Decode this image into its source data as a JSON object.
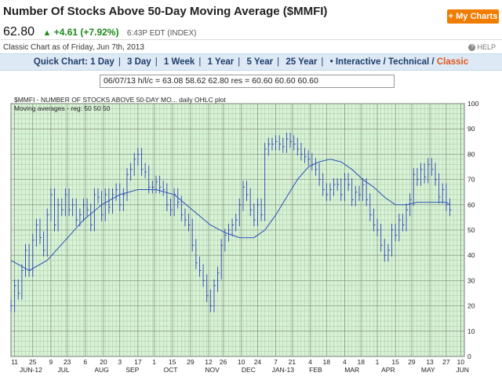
{
  "header": {
    "title": "Number Of Stocks Above 50-Day Moving Average ($MMFI)",
    "my_charts_label": "+ My Charts",
    "price": "62.80",
    "change": "+4.61 (+7.92%)",
    "time": "6:43P EDT (INDEX)",
    "asof": "Classic Chart as of Friday, Jun 7th, 2013",
    "help": "HELP"
  },
  "quickchart": {
    "label": "Quick Chart:",
    "items": [
      "1 Day",
      "3 Day",
      "1 Week",
      "1 Year",
      "5 Year",
      "25 Year"
    ],
    "interactive": "Interactive",
    "technical": "Technical",
    "classic": "Classic",
    "slash": "/"
  },
  "infobox": "06/07/13 h/l/c = 63.08 58.62 62.80 res = 60.60 60.60 60.60",
  "chart_data": {
    "type": "ohlc",
    "title": "$MMFI - NUMBER OF STOCKS ABOVE 50-DAY MO... daily OHLC plot",
    "subtitle": "Moving averages - reg: 50 50 50",
    "ylim": [
      0,
      100
    ],
    "yticks": [
      0,
      10,
      20,
      30,
      40,
      50,
      60,
      70,
      80,
      90,
      100
    ],
    "xlim": [
      0,
      250
    ],
    "xticks": [
      {
        "x": 2,
        "label": "11"
      },
      {
        "x": 12,
        "label": "25"
      },
      {
        "x": 22,
        "label": "9"
      },
      {
        "x": 31,
        "label": "23"
      },
      {
        "x": 41,
        "label": "6"
      },
      {
        "x": 51,
        "label": "20"
      },
      {
        "x": 60,
        "label": "3"
      },
      {
        "x": 70,
        "label": "17"
      },
      {
        "x": 79,
        "label": "1"
      },
      {
        "x": 89,
        "label": "15"
      },
      {
        "x": 99,
        "label": "29"
      },
      {
        "x": 109,
        "label": "12"
      },
      {
        "x": 117,
        "label": "26"
      },
      {
        "x": 127,
        "label": "10"
      },
      {
        "x": 136,
        "label": "24"
      },
      {
        "x": 146,
        "label": "7"
      },
      {
        "x": 155,
        "label": "21"
      },
      {
        "x": 165,
        "label": "4"
      },
      {
        "x": 174,
        "label": "18"
      },
      {
        "x": 184,
        "label": "4"
      },
      {
        "x": 193,
        "label": "18"
      },
      {
        "x": 202,
        "label": "1"
      },
      {
        "x": 212,
        "label": "15"
      },
      {
        "x": 221,
        "label": "29"
      },
      {
        "x": 231,
        "label": "13"
      },
      {
        "x": 240,
        "label": "27"
      },
      {
        "x": 248,
        "label": "10"
      }
    ],
    "month_labels": [
      {
        "x": 11,
        "label": "JUN-12"
      },
      {
        "x": 29,
        "label": "JUL"
      },
      {
        "x": 50,
        "label": "AUG"
      },
      {
        "x": 67,
        "label": "SEP"
      },
      {
        "x": 88,
        "label": "OCT"
      },
      {
        "x": 111,
        "label": "NOV"
      },
      {
        "x": 131,
        "label": "DEC"
      },
      {
        "x": 150,
        "label": "JAN-13"
      },
      {
        "x": 168,
        "label": "FEB"
      },
      {
        "x": 188,
        "label": "MAR"
      },
      {
        "x": 208,
        "label": "APR"
      },
      {
        "x": 230,
        "label": "MAY"
      },
      {
        "x": 249,
        "label": "JUN"
      }
    ],
    "series_close": [
      [
        0,
        20
      ],
      [
        2,
        28
      ],
      [
        4,
        25
      ],
      [
        6,
        34
      ],
      [
        8,
        42
      ],
      [
        10,
        34
      ],
      [
        12,
        46
      ],
      [
        14,
        52
      ],
      [
        16,
        47
      ],
      [
        18,
        42
      ],
      [
        20,
        56
      ],
      [
        22,
        64
      ],
      [
        24,
        52
      ],
      [
        26,
        60
      ],
      [
        28,
        58
      ],
      [
        30,
        64
      ],
      [
        32,
        58
      ],
      [
        34,
        60
      ],
      [
        36,
        54
      ],
      [
        38,
        56
      ],
      [
        40,
        60
      ],
      [
        42,
        58
      ],
      [
        44,
        52
      ],
      [
        46,
        64
      ],
      [
        48,
        63
      ],
      [
        50,
        56
      ],
      [
        52,
        64
      ],
      [
        54,
        59
      ],
      [
        56,
        64
      ],
      [
        58,
        66
      ],
      [
        60,
        60
      ],
      [
        62,
        64
      ],
      [
        64,
        72
      ],
      [
        66,
        74
      ],
      [
        68,
        78
      ],
      [
        70,
        80
      ],
      [
        72,
        74
      ],
      [
        74,
        73
      ],
      [
        76,
        67
      ],
      [
        78,
        67
      ],
      [
        80,
        69
      ],
      [
        82,
        67
      ],
      [
        84,
        66
      ],
      [
        86,
        60
      ],
      [
        88,
        58
      ],
      [
        90,
        64
      ],
      [
        92,
        61
      ],
      [
        94,
        56
      ],
      [
        96,
        54
      ],
      [
        98,
        52
      ],
      [
        100,
        44
      ],
      [
        102,
        37
      ],
      [
        104,
        34
      ],
      [
        106,
        30
      ],
      [
        108,
        24
      ],
      [
        110,
        20
      ],
      [
        112,
        28
      ],
      [
        114,
        33
      ],
      [
        116,
        44
      ],
      [
        118,
        48
      ],
      [
        120,
        50
      ],
      [
        122,
        52
      ],
      [
        124,
        54
      ],
      [
        126,
        60
      ],
      [
        128,
        67
      ],
      [
        130,
        64
      ],
      [
        132,
        58
      ],
      [
        134,
        54
      ],
      [
        136,
        60
      ],
      [
        138,
        56
      ],
      [
        140,
        82
      ],
      [
        142,
        84
      ],
      [
        144,
        84
      ],
      [
        146,
        85
      ],
      [
        148,
        84
      ],
      [
        150,
        83
      ],
      [
        152,
        86
      ],
      [
        154,
        85
      ],
      [
        156,
        84
      ],
      [
        158,
        82
      ],
      [
        160,
        80
      ],
      [
        162,
        79
      ],
      [
        164,
        78
      ],
      [
        166,
        76
      ],
      [
        168,
        74
      ],
      [
        170,
        70
      ],
      [
        172,
        66
      ],
      [
        174,
        64
      ],
      [
        176,
        66
      ],
      [
        178,
        68
      ],
      [
        180,
        68
      ],
      [
        182,
        64
      ],
      [
        184,
        70
      ],
      [
        186,
        68
      ],
      [
        188,
        62
      ],
      [
        190,
        65
      ],
      [
        192,
        64
      ],
      [
        194,
        68
      ],
      [
        196,
        62
      ],
      [
        198,
        56
      ],
      [
        200,
        52
      ],
      [
        202,
        50
      ],
      [
        204,
        44
      ],
      [
        206,
        40
      ],
      [
        208,
        42
      ],
      [
        210,
        50
      ],
      [
        212,
        48
      ],
      [
        214,
        54
      ],
      [
        216,
        52
      ],
      [
        218,
        58
      ],
      [
        220,
        62
      ],
      [
        222,
        72
      ],
      [
        224,
        70
      ],
      [
        226,
        74
      ],
      [
        228,
        71
      ],
      [
        230,
        76
      ],
      [
        232,
        74
      ],
      [
        234,
        70
      ],
      [
        236,
        63
      ],
      [
        238,
        66
      ],
      [
        240,
        60
      ],
      [
        242,
        58
      ]
    ],
    "series_ma": [
      [
        0,
        38
      ],
      [
        10,
        34
      ],
      [
        20,
        38
      ],
      [
        30,
        46
      ],
      [
        40,
        54
      ],
      [
        50,
        60
      ],
      [
        60,
        64
      ],
      [
        70,
        66
      ],
      [
        80,
        66
      ],
      [
        90,
        64
      ],
      [
        100,
        58
      ],
      [
        110,
        52
      ],
      [
        118,
        49
      ],
      [
        126,
        47
      ],
      [
        134,
        47
      ],
      [
        140,
        50
      ],
      [
        146,
        56
      ],
      [
        152,
        63
      ],
      [
        158,
        70
      ],
      [
        164,
        75
      ],
      [
        170,
        77
      ],
      [
        176,
        78
      ],
      [
        182,
        77
      ],
      [
        188,
        74
      ],
      [
        194,
        70
      ],
      [
        200,
        67
      ],
      [
        206,
        63
      ],
      [
        212,
        60
      ],
      [
        218,
        60
      ],
      [
        224,
        61
      ],
      [
        232,
        61
      ],
      [
        240,
        61
      ],
      [
        242,
        60
      ]
    ]
  }
}
